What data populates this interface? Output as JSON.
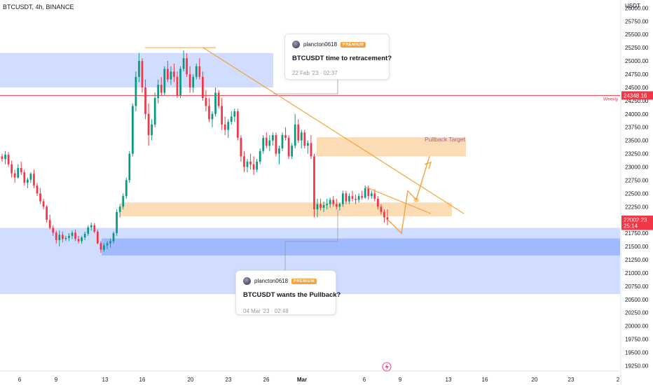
{
  "header": {
    "symbol_label": "BTCUSDT, 4h, BINANCE",
    "quote_currency": "USDT"
  },
  "ideas": [
    {
      "author": "plancton0618",
      "badge": "PREMIUM",
      "title": "BTCUSDT time to retracement?",
      "date": "22 Feb '23 · 02:37"
    },
    {
      "author": "plancton0618",
      "badge": "PREMIUM",
      "title": "BTCUSDT wants the Pullback?",
      "date": "04 Mar '23 · 02:48"
    }
  ],
  "annotations": {
    "pullback_target": "Pullback Target",
    "weekly_label": "Weekly"
  },
  "colors": {
    "up": "#089981",
    "down": "#f23645",
    "orange": "#f7a23b",
    "blue_zone": "#2962ff",
    "orange_zone": "#f7a23b",
    "red_line": "#f23645",
    "axis_text": "#131722"
  },
  "chart_data": {
    "type": "candlestick",
    "symbol": "BTCUSDT",
    "timeframe": "4h",
    "exchange": "BINANCE",
    "ylim": [
      19150,
      26150
    ],
    "y_ticks": [
      "26000.00",
      "25750.00",
      "25500.00",
      "25250.00",
      "25000.00",
      "24750.00",
      "24500.00",
      "24250.00",
      "24000.00",
      "23750.00",
      "23500.00",
      "23250.00",
      "23000.00",
      "22750.00",
      "22500.00",
      "22250.00",
      "22000.00",
      "21750.00",
      "21500.00",
      "21250.00",
      "21000.00",
      "20750.00",
      "20500.00",
      "20250.00",
      "20000.00",
      "19750.00",
      "19500.00",
      "19250.00"
    ],
    "x_ticks": [
      "6",
      "9",
      "13",
      "16",
      "20",
      "23",
      "26",
      "Mar",
      "6",
      "9",
      "13",
      "16",
      "20",
      "23",
      "2"
    ],
    "price_labels": [
      {
        "text": "24348.16",
        "value": 24348.16,
        "color": "#f23645"
      },
      {
        "text": "22002.23",
        "value": 22002.23,
        "color": "#f23645"
      },
      {
        "text": "25:14",
        "value": 21890,
        "color": "#f23645"
      }
    ],
    "horizontal_lines": [
      {
        "name": "Weekly",
        "value": 24348.16,
        "color": "#f23645"
      }
    ],
    "zones": [
      {
        "kind": "blue",
        "y_top": 25150,
        "y_bottom": 24500
      },
      {
        "kind": "blue",
        "y_top": 21850,
        "y_bottom": 20600
      },
      {
        "kind": "blue-dark",
        "y_top": 21650,
        "y_bottom": 21330
      },
      {
        "kind": "orange",
        "y_top": 23560,
        "y_bottom": 23200
      },
      {
        "kind": "orange",
        "y_top": 22330,
        "y_bottom": 22070
      }
    ],
    "trendlines": [
      {
        "from": [
          25250,
          0
        ],
        "to": [
          22120,
          1
        ]
      },
      {
        "from": [
          22620,
          0
        ],
        "to": [
          22120,
          1
        ]
      }
    ],
    "projection_path": [
      22010,
      21750,
      22550,
      22380,
      23200
    ],
    "candles": [
      [
        23200,
        23250,
        23100,
        23150
      ],
      [
        23150,
        23300,
        23050,
        23230
      ],
      [
        23230,
        23280,
        23000,
        23050
      ],
      [
        23050,
        23120,
        22800,
        22880
      ],
      [
        22880,
        22950,
        22700,
        22800
      ],
      [
        22800,
        23050,
        22780,
        22980
      ],
      [
        22980,
        23100,
        22850,
        22900
      ],
      [
        22900,
        22950,
        22650,
        22700
      ],
      [
        22700,
        22800,
        22600,
        22760
      ],
      [
        22760,
        22900,
        22700,
        22870
      ],
      [
        22870,
        22950,
        22600,
        22650
      ],
      [
        22650,
        22700,
        22450,
        22500
      ],
      [
        22500,
        22600,
        22300,
        22350
      ],
      [
        22350,
        22400,
        22200,
        22250
      ],
      [
        22250,
        22280,
        21950,
        22000
      ],
      [
        22000,
        22100,
        21820,
        21850
      ],
      [
        21850,
        21900,
        21700,
        21760
      ],
      [
        21760,
        21800,
        21550,
        21620
      ],
      [
        21620,
        21800,
        21500,
        21720
      ],
      [
        21720,
        21780,
        21580,
        21640
      ],
      [
        21640,
        21700,
        21600,
        21660
      ],
      [
        21660,
        21750,
        21600,
        21700
      ],
      [
        21700,
        21800,
        21640,
        21760
      ],
      [
        21760,
        21820,
        21600,
        21640
      ],
      [
        21640,
        21700,
        21560,
        21600
      ],
      [
        21600,
        21700,
        21550,
        21670
      ],
      [
        21670,
        21780,
        21620,
        21740
      ],
      [
        21740,
        21900,
        21700,
        21860
      ],
      [
        21860,
        21950,
        21800,
        21900
      ],
      [
        21900,
        21940,
        21750,
        21780
      ],
      [
        21780,
        21820,
        21540,
        21560
      ],
      [
        21560,
        21600,
        21380,
        21440
      ],
      [
        21440,
        21560,
        21400,
        21520
      ],
      [
        21520,
        21600,
        21450,
        21560
      ],
      [
        21560,
        21650,
        21480,
        21600
      ],
      [
        21600,
        21780,
        21560,
        21750
      ],
      [
        21750,
        22200,
        21700,
        22150
      ],
      [
        22150,
        22300,
        22050,
        22250
      ],
      [
        22250,
        22500,
        22200,
        22450
      ],
      [
        22450,
        22800,
        22400,
        22750
      ],
      [
        22750,
        23300,
        22700,
        23250
      ],
      [
        23250,
        24200,
        23200,
        24150
      ],
      [
        24150,
        24800,
        24050,
        24700
      ],
      [
        24700,
        25150,
        24600,
        25000
      ],
      [
        25000,
        25050,
        24400,
        24500
      ],
      [
        24500,
        24650,
        23900,
        24000
      ],
      [
        24000,
        24200,
        23400,
        23600
      ],
      [
        23600,
        23900,
        23500,
        23800
      ],
      [
        23800,
        24400,
        23750,
        24300
      ],
      [
        24300,
        24650,
        24200,
        24550
      ],
      [
        24550,
        24700,
        24350,
        24400
      ],
      [
        24400,
        24900,
        24350,
        24850
      ],
      [
        24850,
        25000,
        24600,
        24650
      ],
      [
        24650,
        24900,
        24550,
        24800
      ],
      [
        24800,
        24950,
        24600,
        24700
      ],
      [
        24700,
        24800,
        24300,
        24350
      ],
      [
        24350,
        24900,
        24300,
        24850
      ],
      [
        24850,
        25200,
        24800,
        25050
      ],
      [
        25050,
        25150,
        24700,
        24750
      ],
      [
        24750,
        24900,
        24400,
        24500
      ],
      [
        24500,
        24750,
        24400,
        24700
      ],
      [
        24700,
        24950,
        24650,
        24900
      ],
      [
        24900,
        25050,
        24650,
        24700
      ],
      [
        24700,
        24800,
        24250,
        24300
      ],
      [
        24300,
        24450,
        24050,
        24150
      ],
      [
        24150,
        24300,
        23850,
        23900
      ],
      [
        23900,
        24050,
        23750,
        24000
      ],
      [
        24000,
        24500,
        23950,
        24400
      ],
      [
        24400,
        24450,
        24100,
        24150
      ],
      [
        24150,
        24300,
        23700,
        23800
      ],
      [
        23800,
        23950,
        23600,
        23700
      ],
      [
        23700,
        23900,
        23550,
        23850
      ],
      [
        23850,
        24050,
        23800,
        23950
      ],
      [
        23950,
        24100,
        23850,
        24050
      ],
      [
        24050,
        24100,
        23500,
        23550
      ],
      [
        23550,
        23600,
        23100,
        23200
      ],
      [
        23200,
        23300,
        22900,
        23000
      ],
      [
        23000,
        23150,
        22900,
        23100
      ],
      [
        23100,
        23250,
        22950,
        23050
      ],
      [
        23050,
        23200,
        22850,
        22950
      ],
      [
        22950,
        23150,
        22900,
        23100
      ],
      [
        23100,
        23350,
        23050,
        23300
      ],
      [
        23300,
        23600,
        23250,
        23550
      ],
      [
        23550,
        23650,
        23350,
        23400
      ],
      [
        23400,
        23600,
        23300,
        23500
      ],
      [
        23500,
        23650,
        23400,
        23600
      ],
      [
        23600,
        23650,
        23200,
        23250
      ],
      [
        23250,
        23400,
        23050,
        23350
      ],
      [
        23350,
        23650,
        23300,
        23600
      ],
      [
        23600,
        23750,
        23500,
        23550
      ],
      [
        23550,
        23600,
        23150,
        23200
      ],
      [
        23200,
        23450,
        23150,
        23400
      ],
      [
        23400,
        24000,
        23350,
        23800
      ],
      [
        23800,
        23900,
        23450,
        23500
      ],
      [
        23500,
        23700,
        23350,
        23650
      ],
      [
        23650,
        23700,
        23350,
        23400
      ],
      [
        23400,
        23500,
        23250,
        23450
      ],
      [
        23450,
        23600,
        23150,
        23200
      ],
      [
        23200,
        23250,
        22050,
        22200
      ],
      [
        22200,
        22400,
        22050,
        22300
      ],
      [
        22300,
        22400,
        22180,
        22230
      ],
      [
        22230,
        22350,
        22150,
        22280
      ],
      [
        22280,
        22400,
        22200,
        22300
      ],
      [
        22300,
        22420,
        22230,
        22380
      ],
      [
        22380,
        22450,
        22250,
        22300
      ],
      [
        22300,
        22400,
        22200,
        22250
      ],
      [
        22250,
        22330,
        22180,
        22300
      ],
      [
        22300,
        22550,
        22250,
        22500
      ],
      [
        22500,
        22550,
        22300,
        22350
      ],
      [
        22350,
        22500,
        22300,
        22450
      ],
      [
        22450,
        22550,
        22350,
        22400
      ],
      [
        22400,
        22480,
        22300,
        22380
      ],
      [
        22380,
        22500,
        22330,
        22450
      ],
      [
        22450,
        22550,
        22380,
        22420
      ],
      [
        22420,
        22650,
        22400,
        22600
      ],
      [
        22600,
        22650,
        22380,
        22450
      ],
      [
        22450,
        22550,
        22400,
        22500
      ],
      [
        22500,
        22580,
        22350,
        22400
      ],
      [
        22400,
        22450,
        22200,
        22250
      ],
      [
        22250,
        22300,
        22100,
        22150
      ],
      [
        22150,
        22200,
        21950,
        22050
      ],
      [
        22050,
        22200,
        21900,
        22002
      ]
    ]
  }
}
